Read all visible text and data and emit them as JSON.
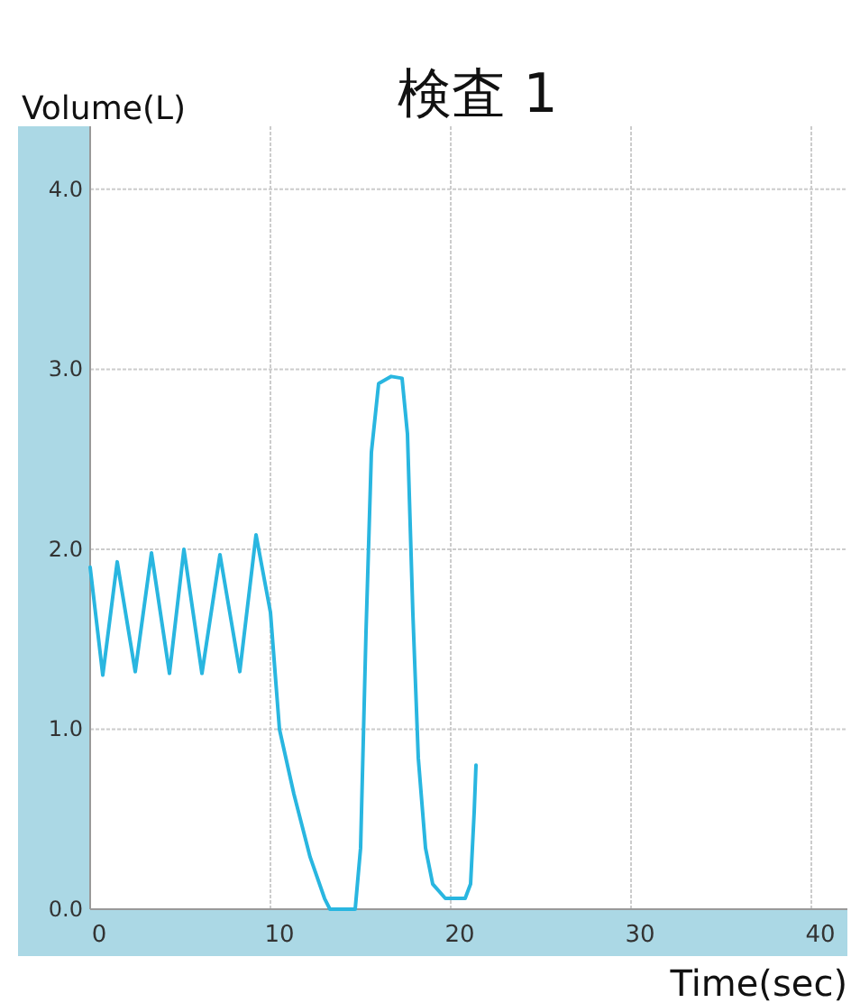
{
  "chart_data": {
    "type": "line",
    "title": "検査 1",
    "xlabel": "Time(sec)",
    "ylabel": "Volume(L)",
    "xlim": [
      0,
      42
    ],
    "ylim": [
      0,
      4.35
    ],
    "xticks": [
      0,
      10,
      20,
      30,
      40
    ],
    "yticks": [
      {
        "value": 0,
        "label": "0.0"
      },
      {
        "value": 1,
        "label": "1.0"
      },
      {
        "value": 2,
        "label": "2.0"
      },
      {
        "value": 3,
        "label": "3.0"
      },
      {
        "value": 4,
        "label": "4.0"
      }
    ],
    "grid": true,
    "marker": "none",
    "line_style": "solid",
    "series": [
      {
        "color": "#29b6e0",
        "x": [
          0,
          0.7,
          1.5,
          2.5,
          3.4,
          4.4,
          5.2,
          6.2,
          7.2,
          8.3,
          9.2,
          10,
          10.5,
          11.3,
          12.2,
          13,
          13.3,
          14.7,
          15,
          15.3,
          15.6,
          16,
          16.7,
          17.3,
          17.6,
          17.9,
          18.2,
          18.6,
          19,
          19.7,
          20.8,
          21.1,
          21.3,
          21.4
        ],
        "values": [
          1.9,
          1.3,
          1.93,
          1.32,
          1.98,
          1.31,
          2.0,
          1.31,
          1.97,
          1.32,
          2.08,
          1.65,
          1.0,
          0.64,
          0.29,
          0.06,
          0,
          0,
          0.34,
          1.54,
          2.54,
          2.92,
          2.96,
          2.95,
          2.64,
          1.64,
          0.84,
          0.34,
          0.14,
          0.06,
          0.06,
          0.14,
          0.54,
          0.8
        ]
      }
    ]
  }
}
